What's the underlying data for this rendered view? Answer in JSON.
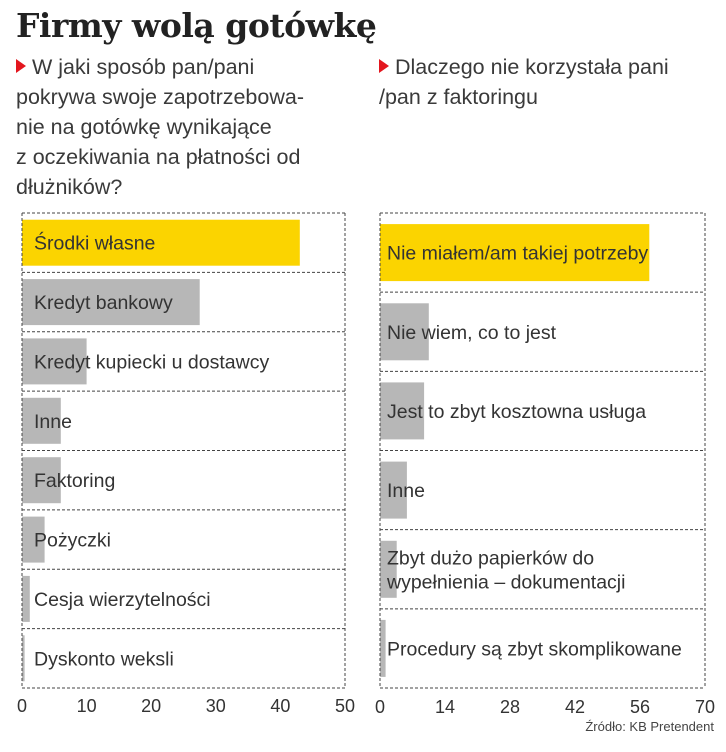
{
  "title": "Firmy wolą gotówkę",
  "source": "Źródło: KB Pretendent",
  "colors": {
    "highlight": "#fbd400",
    "bar": "#b7b7b7",
    "grid": "#444444",
    "marker": "#e3161e"
  },
  "chart_data": [
    {
      "type": "bar",
      "orientation": "horizontal",
      "question": "W jaki sposób pan/pani pokrywa swoje zapotrzebowanie na gotówkę wynikające z oczekiwania na płatności od dłużników?",
      "question_lines": [
        "W jaki sposób pan/pani",
        "pokrywa swoje zapotrzebowa-",
        "nie na gotówkę wynikające",
        "z oczekiwania na płatności od",
        "dłużników?"
      ],
      "categories": [
        "Środki własne",
        "Kredyt bankowy",
        "Kredyt kupiecki u dostawcy",
        "Inne",
        "Faktoring",
        "Pożyczki",
        "Cesja wierzytelności",
        "Dyskonto weksli"
      ],
      "values": [
        43,
        27.5,
        10,
        6,
        6,
        3.5,
        1.2,
        0.4
      ],
      "highlight_index": 0,
      "xlim": [
        0,
        50
      ],
      "ticks": [
        "0",
        "10",
        "20",
        "30",
        "40",
        "50"
      ],
      "tick_values": [
        0,
        10,
        20,
        30,
        40,
        50
      ],
      "grid": true,
      "xlabel": "",
      "ylabel": ""
    },
    {
      "type": "bar",
      "orientation": "horizontal",
      "question": "Dlaczego nie korzystała pani /pan z faktoringu",
      "question_lines": [
        "Dlaczego nie korzystała pani",
        "/pan z faktoringu"
      ],
      "categories": [
        "Nie miałem/am takiej potrzeby",
        "Nie wiem, co to jest",
        "Jest to zbyt kosztowna usługa",
        "Inne",
        "Zbyt dużo papierków do wypełnienia – dokumentacji",
        "Procedury są zbyt skomplikowane"
      ],
      "category_lines": [
        [
          "Nie miałem/am takiej potrzeby"
        ],
        [
          "Nie wiem, co to jest"
        ],
        [
          "Jest to zbyt kosztowna usługa"
        ],
        [
          "Inne"
        ],
        [
          "Zbyt dużo papierków do",
          "wypełnienia – dokumentacji"
        ],
        [
          "Procedury są zbyt skomplikowane"
        ]
      ],
      "values": [
        58,
        10.5,
        9.5,
        5.8,
        3.6,
        1.2
      ],
      "highlight_index": 0,
      "xlim": [
        0,
        70
      ],
      "ticks": [
        "0",
        "14",
        "28",
        "42",
        "56",
        "70"
      ],
      "tick_values": [
        0,
        14,
        28,
        42,
        56,
        70
      ],
      "grid": true,
      "xlabel": "",
      "ylabel": ""
    }
  ]
}
